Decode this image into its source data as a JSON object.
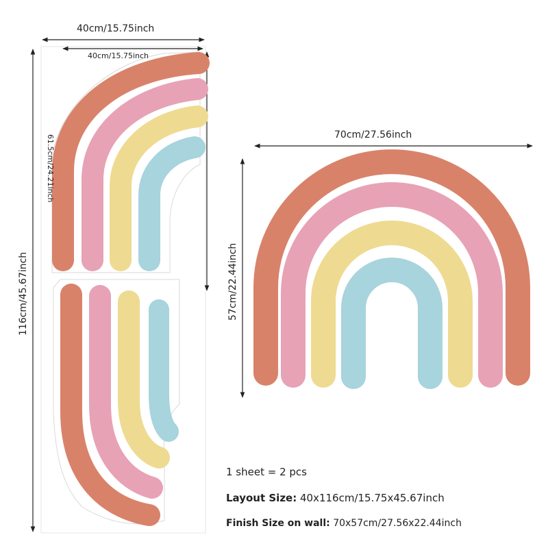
{
  "dimensions": {
    "sheet_width": "40cm/15.75inch",
    "sheet_inner_width": "40cm/15.75inch",
    "sheet_height": "116cm/45.67inch",
    "piece_height": "61.5cm/24.21inch",
    "finished_width": "70cm/27.56inch",
    "finished_height": "57cm/22.44inch"
  },
  "info": {
    "line1": "1 sheet = 2 pcs",
    "layout_label": "Layout Size:",
    "layout_value": " 40x116cm/15.75x45.67inch",
    "finish_label": "Finish Size on wall:",
    "finish_value": " 70x57cm/27.56x22.44inch"
  },
  "colors": {
    "terracotta": "#d9826a",
    "pink": "#e7a2b6",
    "yellow": "#eedb91",
    "blue": "#a7d4dd"
  }
}
